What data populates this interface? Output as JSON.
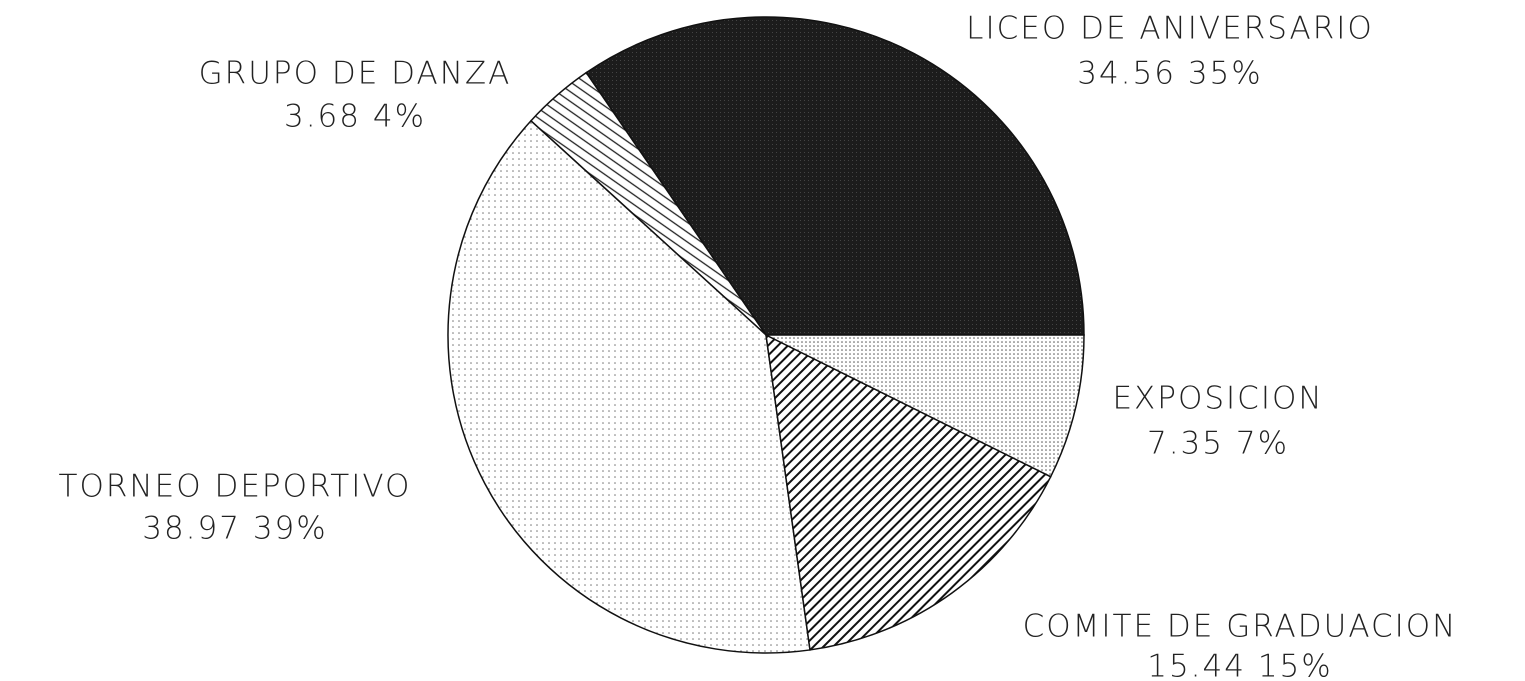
{
  "chart_data": {
    "type": "pie",
    "categories": [
      "LICEO DE ANIVERSARIO",
      "GRUPO DE DANZA",
      "TORNEO DEPORTIVO",
      "COMITE DE GRADUACION",
      "EXPOSICION"
    ],
    "values": [
      34.56,
      3.68,
      38.97,
      15.44,
      7.35
    ],
    "value_labels": [
      "34.56 35%",
      "3.68 4%",
      "38.97 39%",
      "15.44 15%",
      "7.35 7%"
    ]
  }
}
